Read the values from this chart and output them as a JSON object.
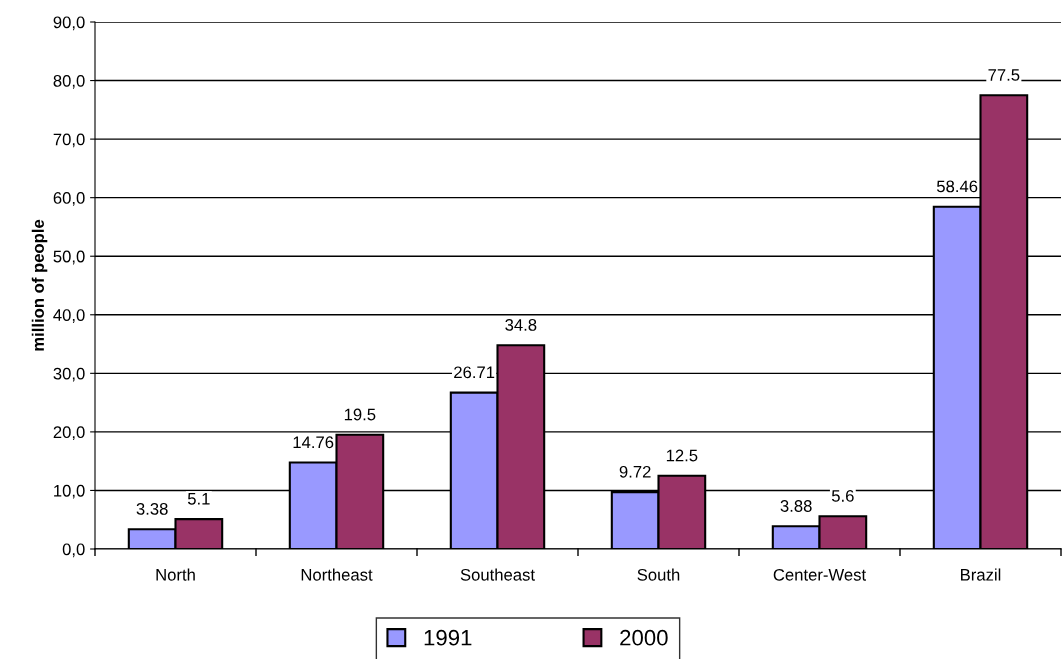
{
  "chart_data": {
    "type": "bar",
    "ylabel": "million of people",
    "categories": [
      "North",
      "Northeast",
      "Southeast",
      "South",
      "Center-West",
      "Brazil"
    ],
    "series": [
      {
        "name": "1991",
        "color": "#9999ff",
        "values": [
          3.38,
          14.76,
          26.71,
          9.72,
          3.88,
          58.46
        ]
      },
      {
        "name": "2000",
        "color": "#993366",
        "values": [
          5.1,
          19.5,
          34.8,
          12.5,
          5.6,
          77.5
        ]
      }
    ],
    "ylim": [
      0,
      90
    ],
    "yticks": [
      {
        "value": 0,
        "label": "0,0"
      },
      {
        "value": 10,
        "label": "10,0"
      },
      {
        "value": 20,
        "label": "20,0"
      },
      {
        "value": 30,
        "label": "30,0"
      },
      {
        "value": 40,
        "label": "40,0"
      },
      {
        "value": 50,
        "label": "50,0"
      },
      {
        "value": 60,
        "label": "60,0"
      },
      {
        "value": 70,
        "label": "70,0"
      },
      {
        "value": 80,
        "label": "80,0"
      },
      {
        "value": 90,
        "label": "90,0"
      }
    ],
    "grid": "y",
    "legend": "bottom",
    "data_labels": true
  }
}
